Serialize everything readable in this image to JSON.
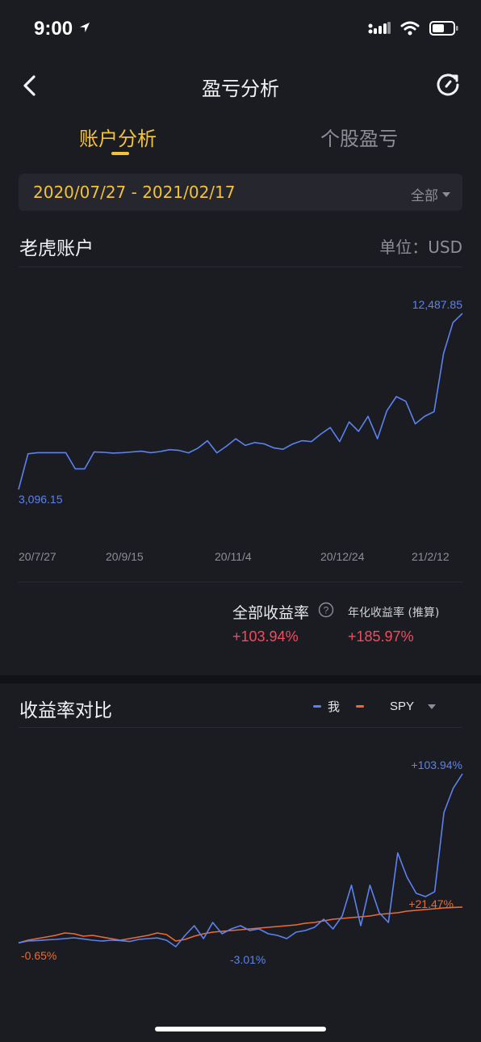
{
  "status_bar": {
    "time": "9:00"
  },
  "nav": {
    "title": "盈亏分析"
  },
  "tabs": [
    {
      "label": "账户分析",
      "active": true
    },
    {
      "label": "个股盈亏",
      "active": false
    }
  ],
  "date_filter": {
    "range": "2020/07/27 - 2021/02/17",
    "selector_label": "全部"
  },
  "account": {
    "title": "老虎账户",
    "unit_label": "单位：USD"
  },
  "colors": {
    "accent": "#f5c234",
    "me": "#5b82f0",
    "spy": "#ec6b33",
    "negative_red": "#ef4d5f",
    "background": "#1b1c22"
  },
  "chart_data": [
    {
      "type": "line",
      "x_ticks": [
        "20/7/27",
        "20/9/15",
        "20/11/4",
        "20/12/24",
        "21/2/12"
      ],
      "annotations": {
        "max": "12,487.85",
        "min": "3,096.15"
      },
      "series": [
        {
          "values": [
            3096.15,
            5000,
            5060,
            5060,
            5060,
            5060,
            4200,
            4200,
            5100,
            5080,
            5040,
            5060,
            5100,
            5140,
            5060,
            5120,
            5220,
            5180,
            5050,
            5300,
            5700,
            5050,
            5400,
            5800,
            5450,
            5600,
            5530,
            5320,
            5240,
            5520,
            5700,
            5650,
            6050,
            6400,
            5650,
            6700,
            6200,
            7000,
            5800,
            7300,
            8050,
            7800,
            6600,
            7000,
            7250,
            10350,
            12000,
            12487.85
          ]
        }
      ]
    },
    {
      "type": "line",
      "annotations": {
        "me_end": "+103.94%",
        "spy_end": "+21.47%",
        "spy_min": "-0.65%",
        "me_min": "-3.01%"
      },
      "series": [
        {
          "name": "我",
          "values": [
            -0.65,
            0.5,
            0.8,
            1.2,
            1.5,
            2.0,
            2.5,
            1.8,
            1.0,
            0.5,
            1.0,
            0.8,
            0.2,
            1.5,
            2.0,
            2.4,
            1.0,
            -3.01,
            4.0,
            10.0,
            2.0,
            12.0,
            5.0,
            8.0,
            10.0,
            7.0,
            8.0,
            5.0,
            4.0,
            2.0,
            6.0,
            7.0,
            9.0,
            14.0,
            8.0,
            16.0,
            35.0,
            10.0,
            35.0,
            18.0,
            12.0,
            55.0,
            40.0,
            30.0,
            28.0,
            31.0,
            80.0,
            95.0,
            103.94
          ]
        },
        {
          "name": "SPY",
          "values": [
            -0.65,
            1.0,
            2.0,
            3.0,
            4.0,
            5.5,
            5.0,
            3.5,
            4.0,
            3.0,
            2.0,
            1.0,
            2.0,
            3.0,
            4.0,
            5.5,
            4.5,
            0.5,
            1.5,
            3.5,
            5.0,
            6.0,
            6.5,
            7.0,
            7.5,
            8.0,
            8.5,
            9.0,
            9.5,
            10.0,
            10.5,
            11.5,
            12.0,
            13.0,
            14.0,
            14.5,
            15.0,
            15.5,
            16.0,
            17.0,
            17.5,
            18.0,
            19.0,
            19.5,
            20.0,
            20.5,
            21.0,
            21.3,
            21.47
          ]
        }
      ]
    }
  ],
  "returns": {
    "total_label": "全部收益率",
    "total_value": "+103.94%",
    "annual_label": "年化收益率 (推算)",
    "annual_value": "+185.97%"
  },
  "comparison": {
    "title": "收益率对比",
    "legend_me": "我",
    "legend_benchmark": "SPY"
  }
}
